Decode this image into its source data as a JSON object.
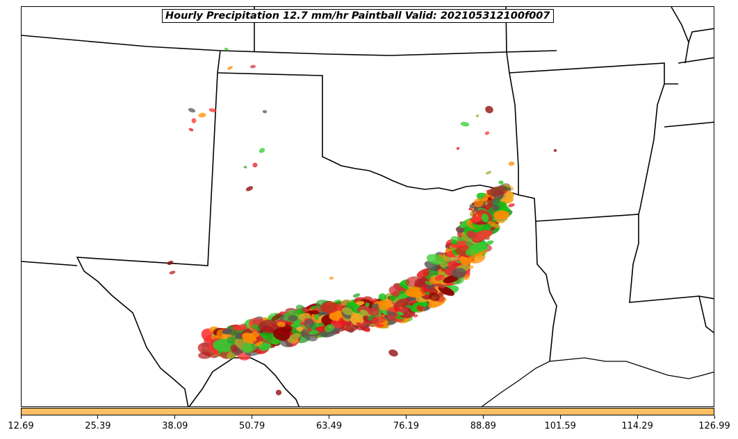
{
  "title": "Hourly Precipitation 12.7 mm/hr Paintball Valid: 202105312100f007",
  "colors": {
    "colorbar_fill": "#ffc065",
    "border_line": "#000000",
    "members": [
      "#e31a1c",
      "#2ca02c",
      "#ff8c00",
      "#8b0000",
      "#a9a930",
      "#11c111",
      "#d13535",
      "#f5a623",
      "#555555",
      "#ff3030",
      "#32cd32",
      "#b22222"
    ]
  },
  "colorbar": {
    "tick_labels": [
      "12.69",
      "25.39",
      "38.09",
      "50.79",
      "63.49",
      "76.19",
      "88.89",
      "101.59",
      "114.29",
      "126.99"
    ]
  },
  "map": {
    "region": "Southern Plains and Lower Mississippi Valley",
    "features": [
      "state-borders",
      "coastline",
      "precipitation-paintball-blobs"
    ]
  }
}
